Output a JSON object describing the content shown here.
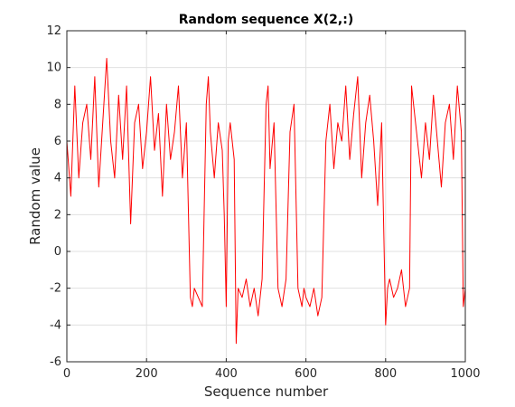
{
  "chart_data": {
    "type": "line",
    "title": "Random sequence X(2,:)",
    "xlabel": "Sequence number",
    "ylabel": "Random value",
    "xlim": [
      0,
      1000
    ],
    "ylim": [
      -6,
      12
    ],
    "xticks": [
      0,
      200,
      400,
      600,
      800,
      1000
    ],
    "yticks": [
      -6,
      -4,
      -2,
      0,
      2,
      4,
      6,
      8,
      10,
      12
    ],
    "grid": true,
    "line_color": "#ff0000",
    "series": [
      {
        "x": [
          0,
          10,
          20,
          30,
          40,
          50,
          60,
          70,
          80,
          90,
          100,
          110,
          120,
          130,
          140,
          150,
          160,
          170,
          180,
          190,
          200,
          210,
          220,
          230,
          240,
          250,
          260,
          270,
          280,
          290,
          300,
          310,
          315,
          320,
          330,
          340,
          350,
          355,
          360,
          370,
          380,
          390,
          395,
          400,
          405,
          410,
          420,
          425,
          430,
          440,
          450,
          460,
          470,
          480,
          490,
          500,
          505,
          510,
          520,
          530,
          540,
          550,
          560,
          570,
          580,
          590,
          595,
          600,
          610,
          620,
          630,
          640,
          650,
          660,
          670,
          680,
          690,
          700,
          710,
          720,
          730,
          740,
          750,
          760,
          770,
          780,
          790,
          800,
          805,
          810,
          820,
          830,
          840,
          850,
          860,
          865,
          870,
          880,
          890,
          900,
          910,
          920,
          930,
          940,
          950,
          960,
          970,
          980,
          990,
          995,
          1000
        ],
        "y": [
          6,
          3,
          9,
          4,
          7,
          8,
          5,
          9.5,
          3.5,
          7,
          10.5,
          6,
          4,
          8.5,
          5,
          9,
          1.5,
          7,
          8,
          4.5,
          6.5,
          9.5,
          5.5,
          7.5,
          3,
          8,
          5,
          6.5,
          9,
          4,
          7,
          -2.5,
          -3,
          -2,
          -2.5,
          -3,
          8,
          9.5,
          6.5,
          4,
          7,
          5.5,
          2,
          -3,
          6,
          7,
          5,
          -5,
          -2,
          -2.5,
          -1.5,
          -3,
          -2,
          -3.5,
          -1.5,
          8,
          9,
          4.5,
          7,
          -2,
          -3,
          -1.5,
          6.5,
          8,
          -2,
          -3,
          -2,
          -2.5,
          -3,
          -2,
          -3.5,
          -2.5,
          6,
          8,
          4.5,
          7,
          6,
          9,
          5,
          7.5,
          9.5,
          4,
          7,
          8.5,
          6,
          2.5,
          7,
          -4,
          -2,
          -1.5,
          -2.5,
          -2,
          -1,
          -3,
          -2,
          9,
          8,
          6,
          4,
          7,
          5,
          8.5,
          6,
          3.5,
          7,
          8,
          5,
          9,
          6.5,
          -3,
          -2
        ]
      }
    ]
  }
}
